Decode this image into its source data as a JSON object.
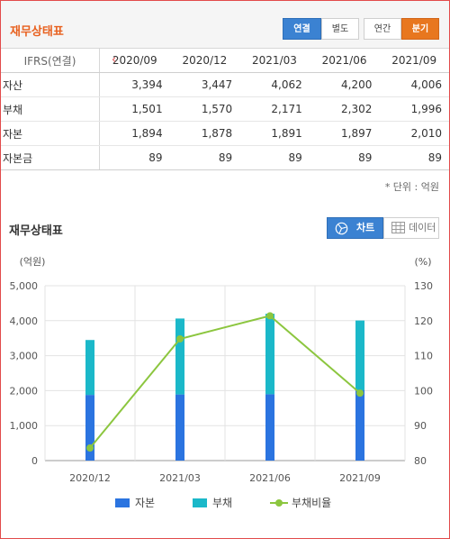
{
  "header": {
    "title": "재무상태표",
    "toggles": [
      {
        "label": "연결",
        "active": true
      },
      {
        "label": "별도",
        "active": false
      },
      {
        "label": "연간",
        "active": false
      },
      {
        "label": "분기",
        "active": true
      }
    ]
  },
  "table": {
    "header_label": "IFRS(연결)",
    "periods": [
      "2020/09",
      "2020/12",
      "2021/03",
      "2021/06",
      "2021/09"
    ],
    "rows": [
      {
        "label": "자산",
        "values": [
          "3,394",
          "3,447",
          "4,062",
          "4,200",
          "4,006"
        ]
      },
      {
        "label": "부채",
        "values": [
          "1,501",
          "1,570",
          "2,171",
          "2,302",
          "1,996"
        ]
      },
      {
        "label": "자본",
        "values": [
          "1,894",
          "1,878",
          "1,891",
          "1,897",
          "2,010"
        ]
      },
      {
        "label": "자본금",
        "values": [
          "89",
          "89",
          "89",
          "89",
          "89"
        ]
      }
    ],
    "unit_note": "* 단위 : 억원"
  },
  "chart_section": {
    "title": "재무상태표",
    "chart_button": "차트",
    "data_button": "데이터"
  },
  "chart_data": {
    "type": "bar",
    "stacked": true,
    "categories": [
      "2020/12",
      "2021/03",
      "2021/06",
      "2021/09"
    ],
    "series": [
      {
        "name": "자본",
        "type": "bar",
        "axis": "left",
        "color": "#2b74e0",
        "values": [
          1878,
          1891,
          1897,
          2010
        ]
      },
      {
        "name": "부채",
        "type": "bar",
        "axis": "left",
        "color": "#1bb8c9",
        "values": [
          1570,
          2171,
          2302,
          1996
        ]
      },
      {
        "name": "부채비율",
        "type": "line",
        "axis": "right",
        "color": "#8cc63f",
        "values": [
          83.6,
          114.8,
          121.4,
          99.3
        ]
      }
    ],
    "ylabel_left": "(억원)",
    "ylabel_right": "(%)",
    "ylim_left": [
      0,
      5000
    ],
    "yticks_left": [
      "0",
      "1,000",
      "2,000",
      "3,000",
      "4,000",
      "5,000"
    ],
    "ylim_right": [
      80,
      130
    ],
    "yticks_right": [
      "80",
      "90",
      "100",
      "110",
      "120",
      "130"
    ],
    "grid": true,
    "legend": "bottom"
  }
}
